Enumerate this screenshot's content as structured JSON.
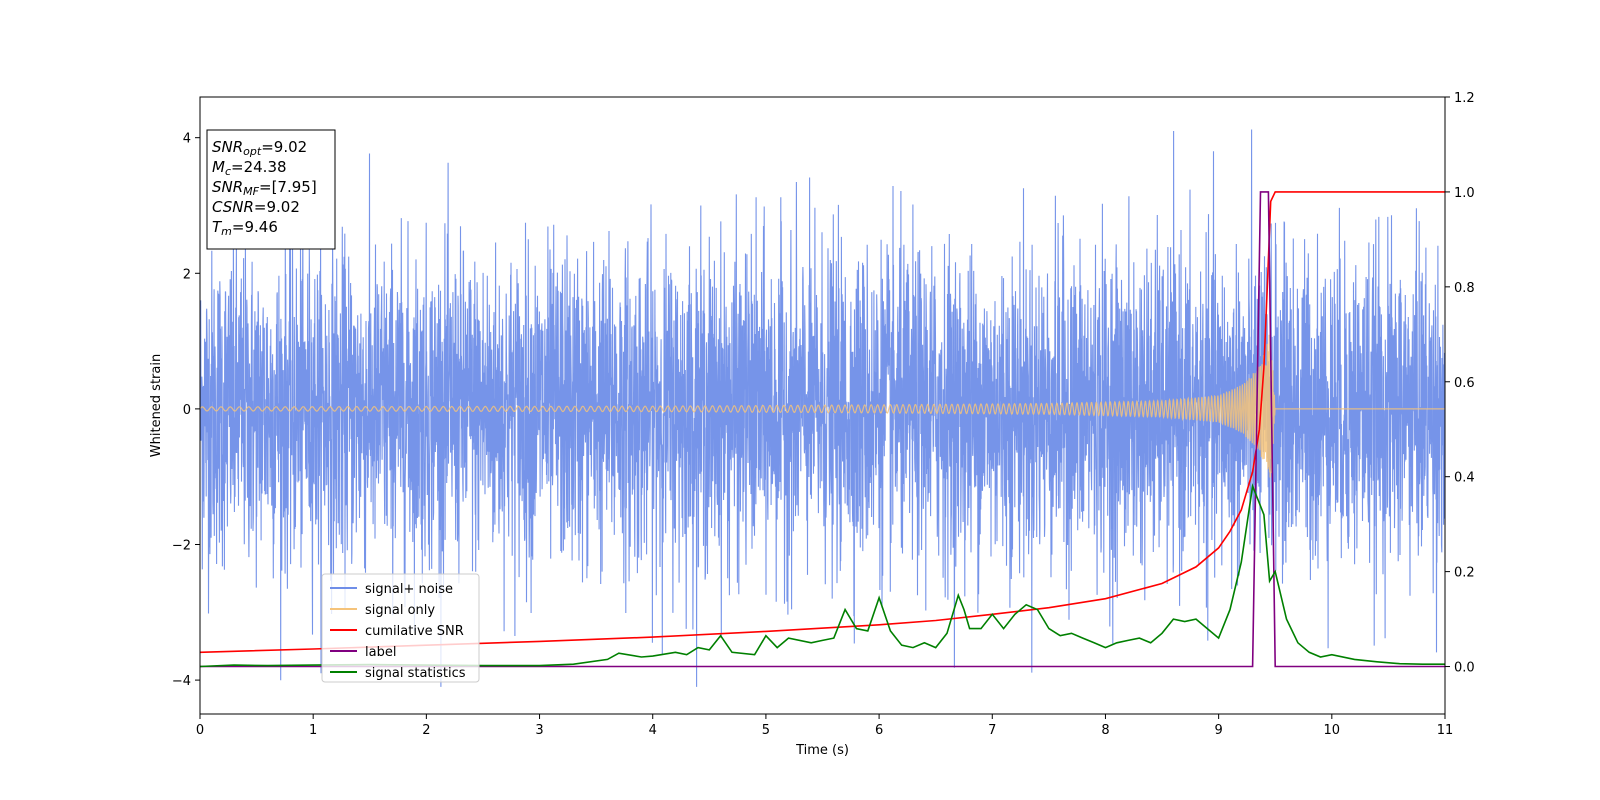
{
  "chart_data": {
    "type": "line",
    "xlabel": "Time (s)",
    "ylabel": "Whitened strain",
    "xlim": [
      0,
      11
    ],
    "ylim": [
      -4.5,
      4.6
    ],
    "y2lim": [
      -0.1,
      1.2
    ],
    "x_ticks": [
      "0",
      "1",
      "2",
      "3",
      "4",
      "5",
      "6",
      "7",
      "8",
      "9",
      "10",
      "11"
    ],
    "y_ticks": [
      "−4",
      "−2",
      "0",
      "2",
      "4"
    ],
    "y2_ticks": [
      "0.0",
      "0.2",
      "0.4",
      "0.6",
      "0.8",
      "1.0",
      "1.2"
    ],
    "legend_position": "lower-left",
    "annotation": [
      {
        "sym": "SNR",
        "sub": "opt",
        "value": "=9.02"
      },
      {
        "sym": "M",
        "sub": "c",
        "value": "=24.38"
      },
      {
        "sym": "SNR",
        "sub": "MF",
        "value": "=[7.95]"
      },
      {
        "sym": "CSNR",
        "sub": "",
        "value": "=9.02"
      },
      {
        "sym": "T",
        "sub": "m",
        "value": "=9.46"
      }
    ],
    "series": [
      {
        "name": "signal+ noise",
        "axis": "left",
        "color": "#6f8ee8",
        "description_values": {
          "mean": 0,
          "approx_range": [
            -4.1,
            4.2
          ]
        }
      },
      {
        "name": "signal only",
        "axis": "left",
        "color": "#f5c37a",
        "envelope": {
          "x": [
            0,
            4,
            6,
            7.5,
            8.5,
            9.0,
            9.2,
            9.35,
            9.42,
            9.46,
            9.5,
            11
          ],
          "amplitude": [
            0.03,
            0.04,
            0.06,
            0.08,
            0.12,
            0.2,
            0.35,
            0.6,
            0.9,
            1.2,
            0,
            0
          ]
        }
      },
      {
        "name": "cumilative SNR",
        "axis": "right",
        "color": "#ff0000",
        "x": [
          0,
          1,
          2,
          3,
          4,
          5,
          6,
          6.5,
          7,
          7.5,
          8,
          8.5,
          8.8,
          9.0,
          9.1,
          9.2,
          9.3,
          9.36,
          9.4,
          9.43,
          9.46,
          9.5,
          11
        ],
        "y": [
          0.03,
          0.037,
          0.045,
          0.053,
          0.062,
          0.074,
          0.088,
          0.097,
          0.11,
          0.124,
          0.143,
          0.175,
          0.21,
          0.25,
          0.285,
          0.33,
          0.41,
          0.5,
          0.63,
          0.8,
          0.98,
          1.0,
          1.0
        ]
      },
      {
        "name": "label",
        "axis": "right",
        "color": "#800080",
        "x": [
          0,
          9.3,
          9.37,
          9.44,
          9.5,
          11
        ],
        "y": [
          0,
          0,
          1.0,
          1.0,
          0,
          0
        ]
      },
      {
        "name": "signal statistics",
        "axis": "right",
        "color": "#008000",
        "x": [
          0,
          0.3,
          0.6,
          1,
          1.5,
          2,
          2.5,
          3,
          3.3,
          3.6,
          3.7,
          3.9,
          4.0,
          4.2,
          4.3,
          4.4,
          4.5,
          4.6,
          4.7,
          4.9,
          5.0,
          5.1,
          5.2,
          5.4,
          5.5,
          5.6,
          5.7,
          5.8,
          5.9,
          6.0,
          6.1,
          6.2,
          6.3,
          6.4,
          6.5,
          6.6,
          6.7,
          6.75,
          6.8,
          6.9,
          7.0,
          7.1,
          7.2,
          7.3,
          7.4,
          7.5,
          7.6,
          7.7,
          7.8,
          7.9,
          8.0,
          8.1,
          8.2,
          8.3,
          8.4,
          8.5,
          8.6,
          8.7,
          8.8,
          8.9,
          9.0,
          9.1,
          9.2,
          9.3,
          9.35,
          9.4,
          9.45,
          9.5,
          9.6,
          9.7,
          9.8,
          9.9,
          10.0,
          10.2,
          10.4,
          10.6,
          10.8,
          11
        ],
        "y": [
          0,
          0.003,
          0.002,
          0.003,
          0.004,
          0.003,
          0.002,
          0.002,
          0.005,
          0.015,
          0.028,
          0.02,
          0.022,
          0.03,
          0.025,
          0.04,
          0.035,
          0.065,
          0.03,
          0.025,
          0.065,
          0.04,
          0.06,
          0.05,
          0.055,
          0.06,
          0.12,
          0.08,
          0.075,
          0.145,
          0.075,
          0.045,
          0.04,
          0.05,
          0.04,
          0.07,
          0.15,
          0.12,
          0.08,
          0.08,
          0.11,
          0.08,
          0.11,
          0.13,
          0.12,
          0.08,
          0.065,
          0.07,
          0.06,
          0.05,
          0.04,
          0.05,
          0.055,
          0.06,
          0.05,
          0.07,
          0.1,
          0.095,
          0.1,
          0.08,
          0.06,
          0.12,
          0.22,
          0.38,
          0.35,
          0.32,
          0.18,
          0.2,
          0.1,
          0.05,
          0.03,
          0.02,
          0.025,
          0.015,
          0.01,
          0.006,
          0.005,
          0.005
        ]
      }
    ]
  }
}
